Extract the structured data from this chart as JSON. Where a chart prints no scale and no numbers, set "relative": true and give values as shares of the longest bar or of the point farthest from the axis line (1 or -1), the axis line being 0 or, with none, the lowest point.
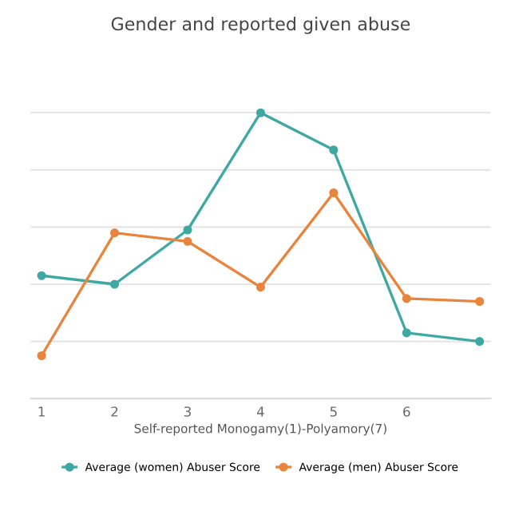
{
  "chart_data": {
    "type": "line",
    "title": "Gender and reported given abuse",
    "xlabel": "Self-reported Monogamy(1)-Polyamory(7)",
    "categories": [
      "1",
      "2",
      "3",
      "4",
      "5",
      "6",
      null
    ],
    "relative": true,
    "grid": "y",
    "legend": "bottom",
    "marker": "circle",
    "line_style": "solid",
    "series": [
      {
        "name": "Average (women) Abuser Score",
        "color": "#3ea8a2",
        "values": [
          0.43,
          0.4,
          0.59,
          1,
          0.87,
          0.23,
          0.2
        ]
      },
      {
        "name": "Average (men) Abuser Score",
        "color": "#e8843c",
        "values": [
          0.15,
          0.58,
          0.55,
          0.39,
          0.72,
          0.35,
          0.34
        ]
      }
    ]
  }
}
